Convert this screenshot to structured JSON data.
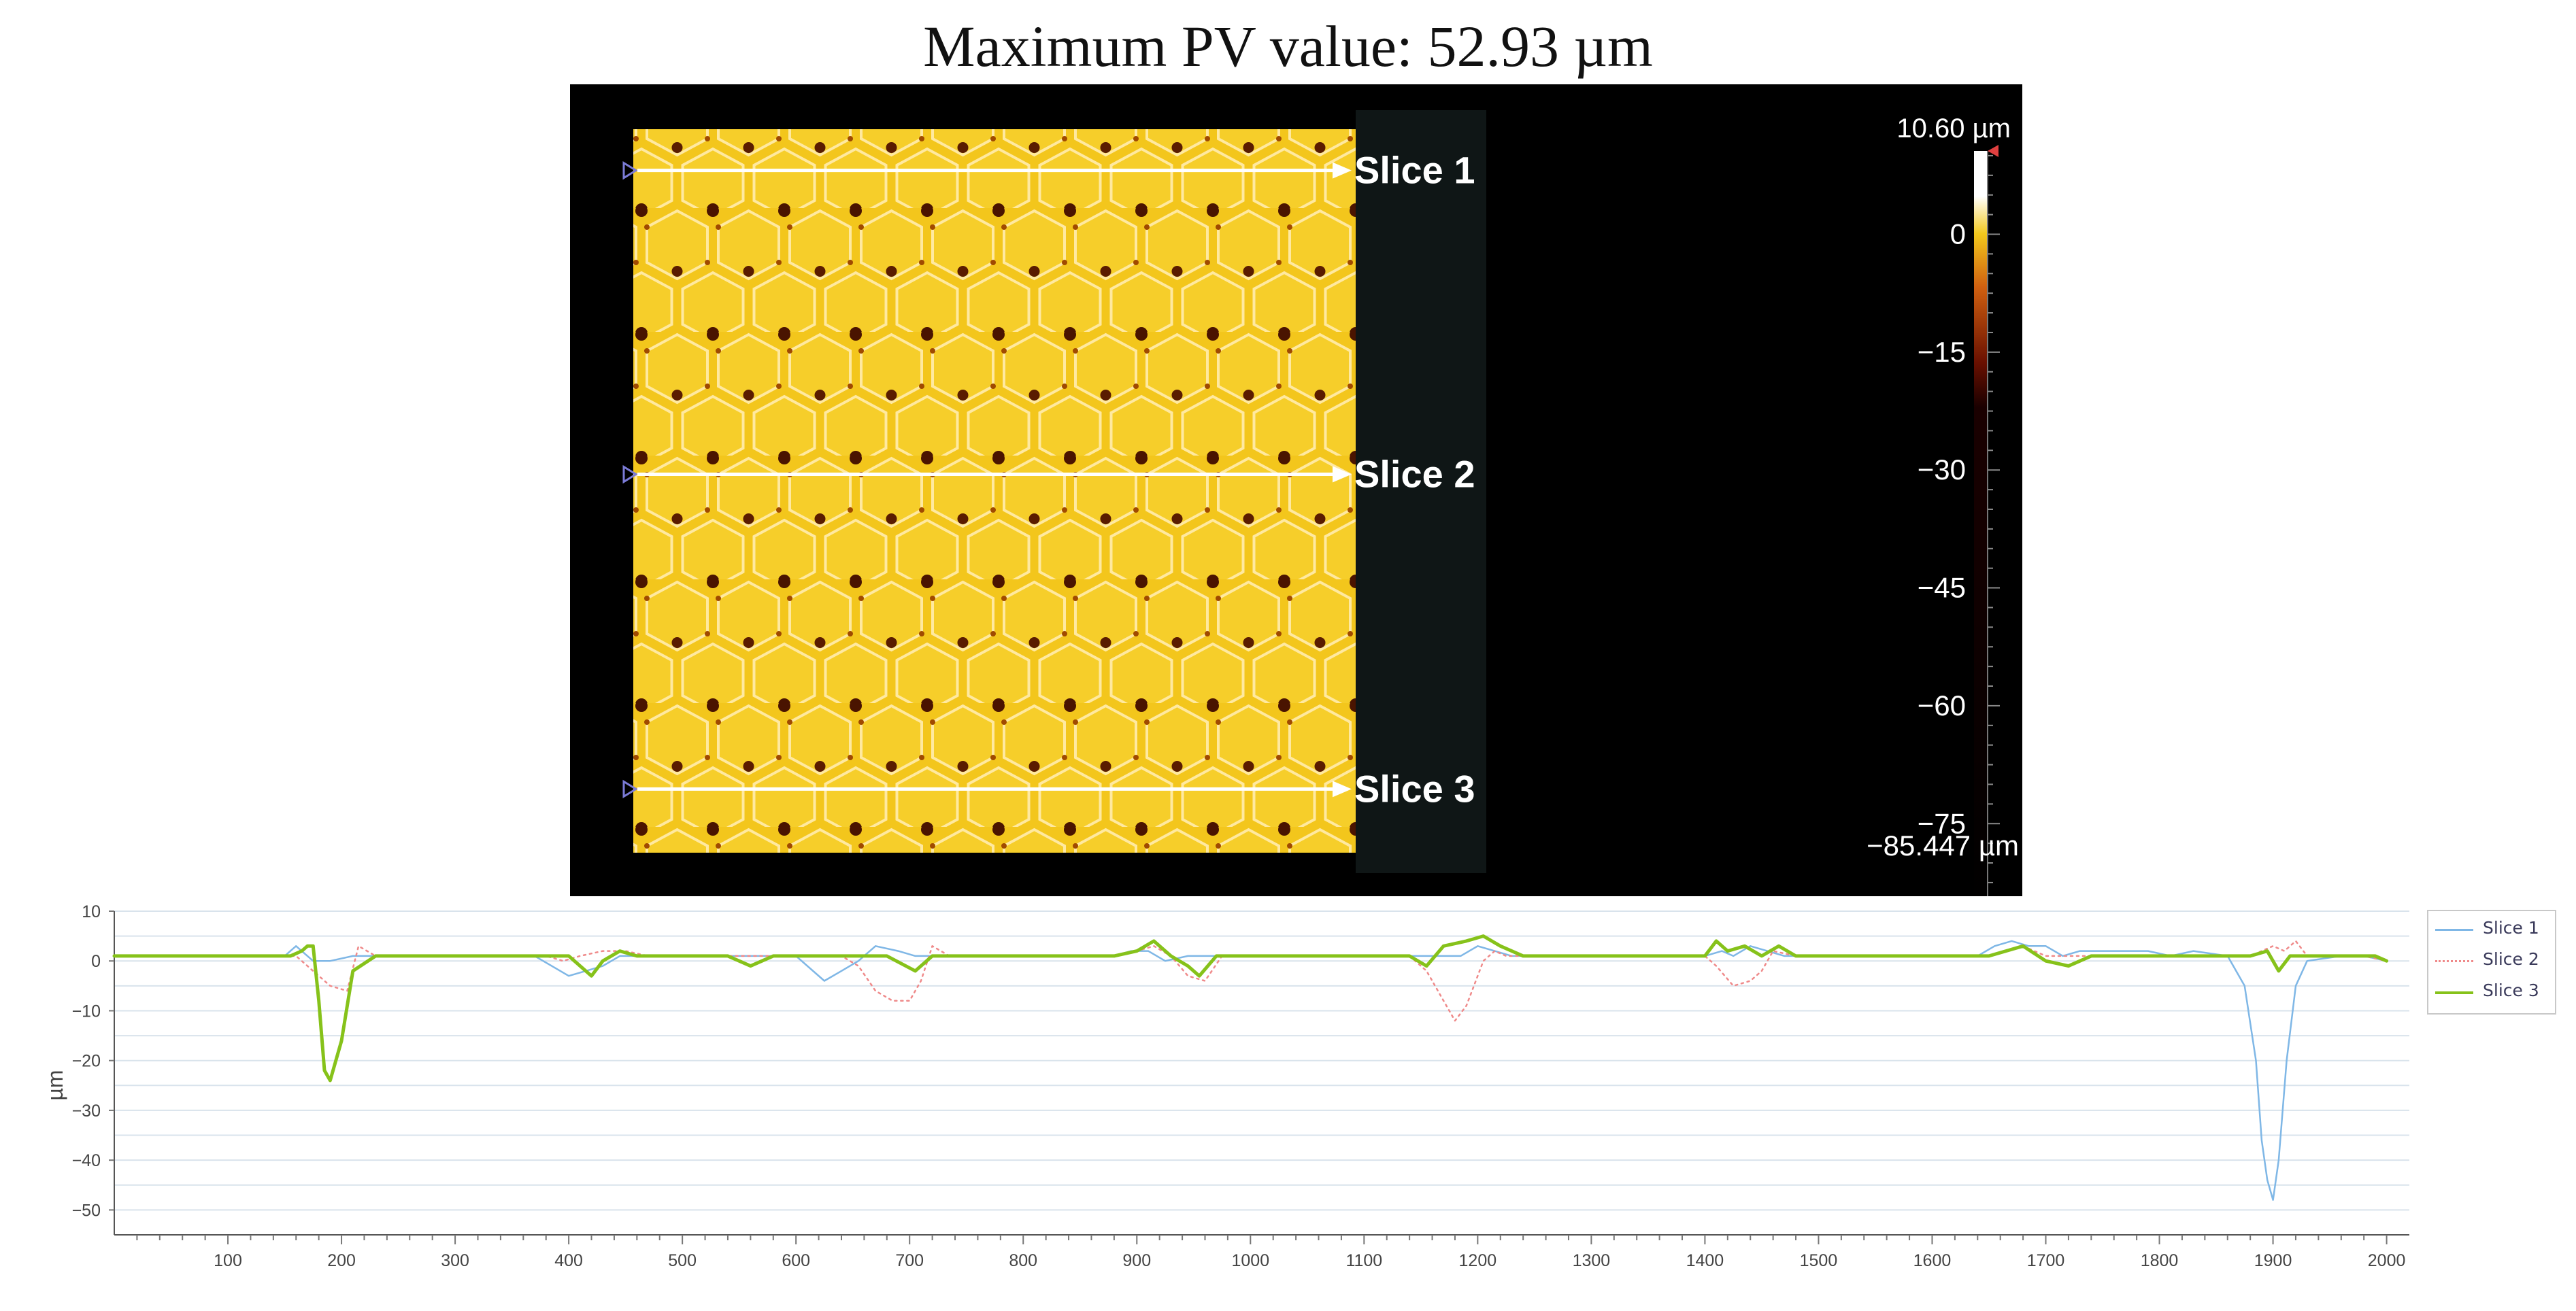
{
  "title": "Maximum PV value: 52.93 µm",
  "colors": {
    "map_background": "#000000",
    "surface": "#f3c61c",
    "pit": "#2a0a00",
    "slice_line": "#ffffff",
    "slice_marker": "#7b7bd6",
    "slice1": "#7fb7e6",
    "slice2": "#ef8a8a",
    "slice3": "#86c21a",
    "grid": "#d9e3ec",
    "axis": "#444444"
  },
  "height_map": {
    "slices": [
      {
        "label": "Slice 1",
        "row": 0.057
      },
      {
        "label": "Slice 2",
        "row": 0.477
      },
      {
        "label": "Slice 3",
        "row": 0.912
      }
    ],
    "colorbar": {
      "max_label": "10.60 µm",
      "min_label": "−85.447 µm",
      "min": -85.447,
      "max": 10.6,
      "ticks": [
        {
          "value": 0,
          "label": "0"
        },
        {
          "value": -15,
          "label": "−15"
        },
        {
          "value": -30,
          "label": "−30"
        },
        {
          "value": -45,
          "label": "−45"
        },
        {
          "value": -60,
          "label": "−60"
        },
        {
          "value": -75,
          "label": "−75"
        }
      ]
    }
  },
  "chart_data": {
    "type": "line",
    "title": "",
    "xlabel": "",
    "ylabel": "µm",
    "xlim": [
      0,
      2020
    ],
    "ylim": [
      -55,
      10
    ],
    "xticks": [
      100,
      200,
      300,
      400,
      500,
      600,
      700,
      800,
      900,
      1000,
      1100,
      1200,
      1300,
      1400,
      1500,
      1600,
      1700,
      1800,
      1900,
      2000
    ],
    "yticks": [
      10,
      0,
      -10,
      -20,
      -30,
      -40,
      -50
    ],
    "grid": true,
    "legend": "right",
    "series": [
      {
        "name": "Slice 1",
        "color": "#7fb7e6",
        "style": "solid",
        "x": [
          0,
          150,
          160,
          175,
          190,
          210,
          220,
          370,
          385,
          400,
          415,
          430,
          445,
          465,
          600,
          625,
          640,
          655,
          670,
          690,
          705,
          880,
          895,
          910,
          925,
          945,
          960,
          1150,
          1170,
          1185,
          1200,
          1215,
          1230,
          1400,
          1415,
          1425,
          1440,
          1455,
          1470,
          1640,
          1655,
          1670,
          1685,
          1700,
          1715,
          1730,
          1760,
          1790,
          1810,
          1830,
          1860,
          1875,
          1885,
          1890,
          1895,
          1900,
          1905,
          1912,
          1920,
          1930,
          1960,
          1980,
          2000
        ],
        "y": [
          1,
          1,
          3,
          0,
          0,
          1,
          1,
          1,
          -1,
          -3,
          -2,
          -1,
          1,
          1,
          1,
          -4,
          -2,
          0,
          3,
          2,
          1,
          1,
          2,
          2,
          0,
          1,
          1,
          1,
          1,
          1,
          3,
          2,
          1,
          1,
          2,
          1,
          3,
          2,
          1,
          1,
          3,
          4,
          3,
          3,
          1,
          2,
          2,
          2,
          1,
          2,
          1,
          -5,
          -20,
          -36,
          -44,
          -48,
          -40,
          -20,
          -5,
          0,
          1,
          1,
          0
        ]
      },
      {
        "name": "Slice 2",
        "color": "#ef8a8a",
        "style": "dotted",
        "x": [
          0,
          160,
          175,
          190,
          205,
          215,
          230,
          380,
          395,
          410,
          430,
          450,
          470,
          640,
          655,
          670,
          685,
          700,
          710,
          720,
          735,
          880,
          900,
          915,
          930,
          945,
          960,
          975,
          1140,
          1155,
          1170,
          1180,
          1190,
          1205,
          1215,
          1225,
          1400,
          1410,
          1425,
          1440,
          1450,
          1460,
          1480,
          1650,
          1665,
          1680,
          1700,
          1720,
          1880,
          1900,
          1910,
          1920,
          1930,
          1950,
          1980,
          2000
        ],
        "y": [
          1,
          1,
          -2,
          -5,
          -6,
          3,
          1,
          1,
          0,
          1,
          2,
          2,
          1,
          1,
          -1,
          -6,
          -8,
          -8,
          -4,
          3,
          1,
          1,
          2,
          3,
          1,
          -3,
          -4,
          1,
          1,
          -2,
          -8,
          -12,
          -9,
          0,
          2,
          1,
          1,
          -1,
          -5,
          -4,
          -2,
          2,
          1,
          1,
          2,
          3,
          1,
          1,
          1,
          3,
          2,
          4,
          1,
          1,
          1,
          0
        ]
      },
      {
        "name": "Slice 3",
        "color": "#86c21a",
        "style": "solid",
        "x": [
          0,
          155,
          165,
          170,
          175,
          180,
          185,
          190,
          200,
          210,
          230,
          380,
          400,
          420,
          430,
          445,
          460,
          480,
          540,
          560,
          580,
          600,
          640,
          680,
          705,
          720,
          880,
          900,
          915,
          930,
          945,
          955,
          970,
          1140,
          1155,
          1170,
          1190,
          1205,
          1220,
          1240,
          1400,
          1410,
          1420,
          1435,
          1450,
          1465,
          1480,
          1650,
          1665,
          1680,
          1700,
          1720,
          1740,
          1880,
          1895,
          1905,
          1915,
          1930,
          1960,
          1990,
          2000
        ],
        "y": [
          1,
          1,
          2,
          3,
          3,
          -8,
          -22,
          -24,
          -16,
          -2,
          1,
          1,
          1,
          -3,
          0,
          2,
          1,
          1,
          1,
          -1,
          1,
          1,
          1,
          1,
          -2,
          1,
          1,
          2,
          4,
          1,
          -1,
          -3,
          1,
          1,
          -1,
          3,
          4,
          5,
          3,
          1,
          1,
          4,
          2,
          3,
          1,
          3,
          1,
          1,
          2,
          3,
          0,
          -1,
          1,
          1,
          2,
          -2,
          1,
          1,
          1,
          1,
          0
        ]
      }
    ]
  }
}
